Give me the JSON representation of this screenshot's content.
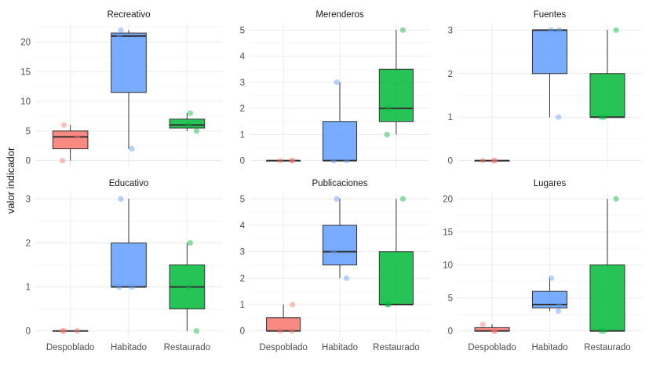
{
  "chart_data": {
    "type": "boxplot",
    "ylabel": "valor indicador",
    "xlabel": "",
    "categories": [
      "Despoblado",
      "Habitado",
      "Restaurado"
    ],
    "colors": {
      "Despoblado": "#F8766D",
      "Habitado": "#619CFF",
      "Restaurado": "#00BA38"
    },
    "grid": true,
    "facets": [
      {
        "title": "Recreativo",
        "yticks": [
          0,
          5,
          10,
          15,
          20
        ],
        "ylim": [
          0,
          22
        ],
        "points": {
          "Despoblado": [
            0,
            4,
            6
          ],
          "Habitado": [
            2,
            21,
            22
          ],
          "Restaurado": [
            5,
            6,
            8
          ]
        }
      },
      {
        "title": "Merenderos",
        "yticks": [
          0,
          1,
          2,
          3,
          4,
          5
        ],
        "ylim": [
          0,
          5
        ],
        "points": {
          "Despoblado": [
            0,
            0,
            0
          ],
          "Habitado": [
            0,
            0,
            3
          ],
          "Restaurado": [
            1,
            2,
            5
          ]
        }
      },
      {
        "title": "Fuentes",
        "yticks": [
          0,
          1,
          2,
          3
        ],
        "ylim": [
          0,
          3
        ],
        "points": {
          "Despoblado": [
            0,
            0,
            0
          ],
          "Habitado": [
            1,
            3,
            3
          ],
          "Restaurado": [
            1,
            1,
            3
          ]
        }
      },
      {
        "title": "Educativo",
        "yticks": [
          0,
          1,
          2,
          3
        ],
        "ylim": [
          0,
          3
        ],
        "points": {
          "Despoblado": [
            0,
            0,
            0
          ],
          "Habitado": [
            1,
            1,
            3
          ],
          "Restaurado": [
            0,
            1,
            2
          ]
        }
      },
      {
        "title": "Publicaciones",
        "yticks": [
          0,
          1,
          2,
          3,
          4,
          5
        ],
        "ylim": [
          0,
          5
        ],
        "points": {
          "Despoblado": [
            0,
            0,
            1
          ],
          "Habitado": [
            2,
            3,
            5
          ],
          "Restaurado": [
            1,
            1,
            5
          ]
        }
      },
      {
        "title": "Lugares",
        "yticks": [
          0,
          5,
          10,
          15,
          20
        ],
        "ylim": [
          0,
          20
        ],
        "points": {
          "Despoblado": [
            0,
            0,
            1
          ],
          "Habitado": [
            3,
            4,
            8
          ],
          "Restaurado": [
            0,
            0,
            20
          ]
        }
      }
    ]
  }
}
